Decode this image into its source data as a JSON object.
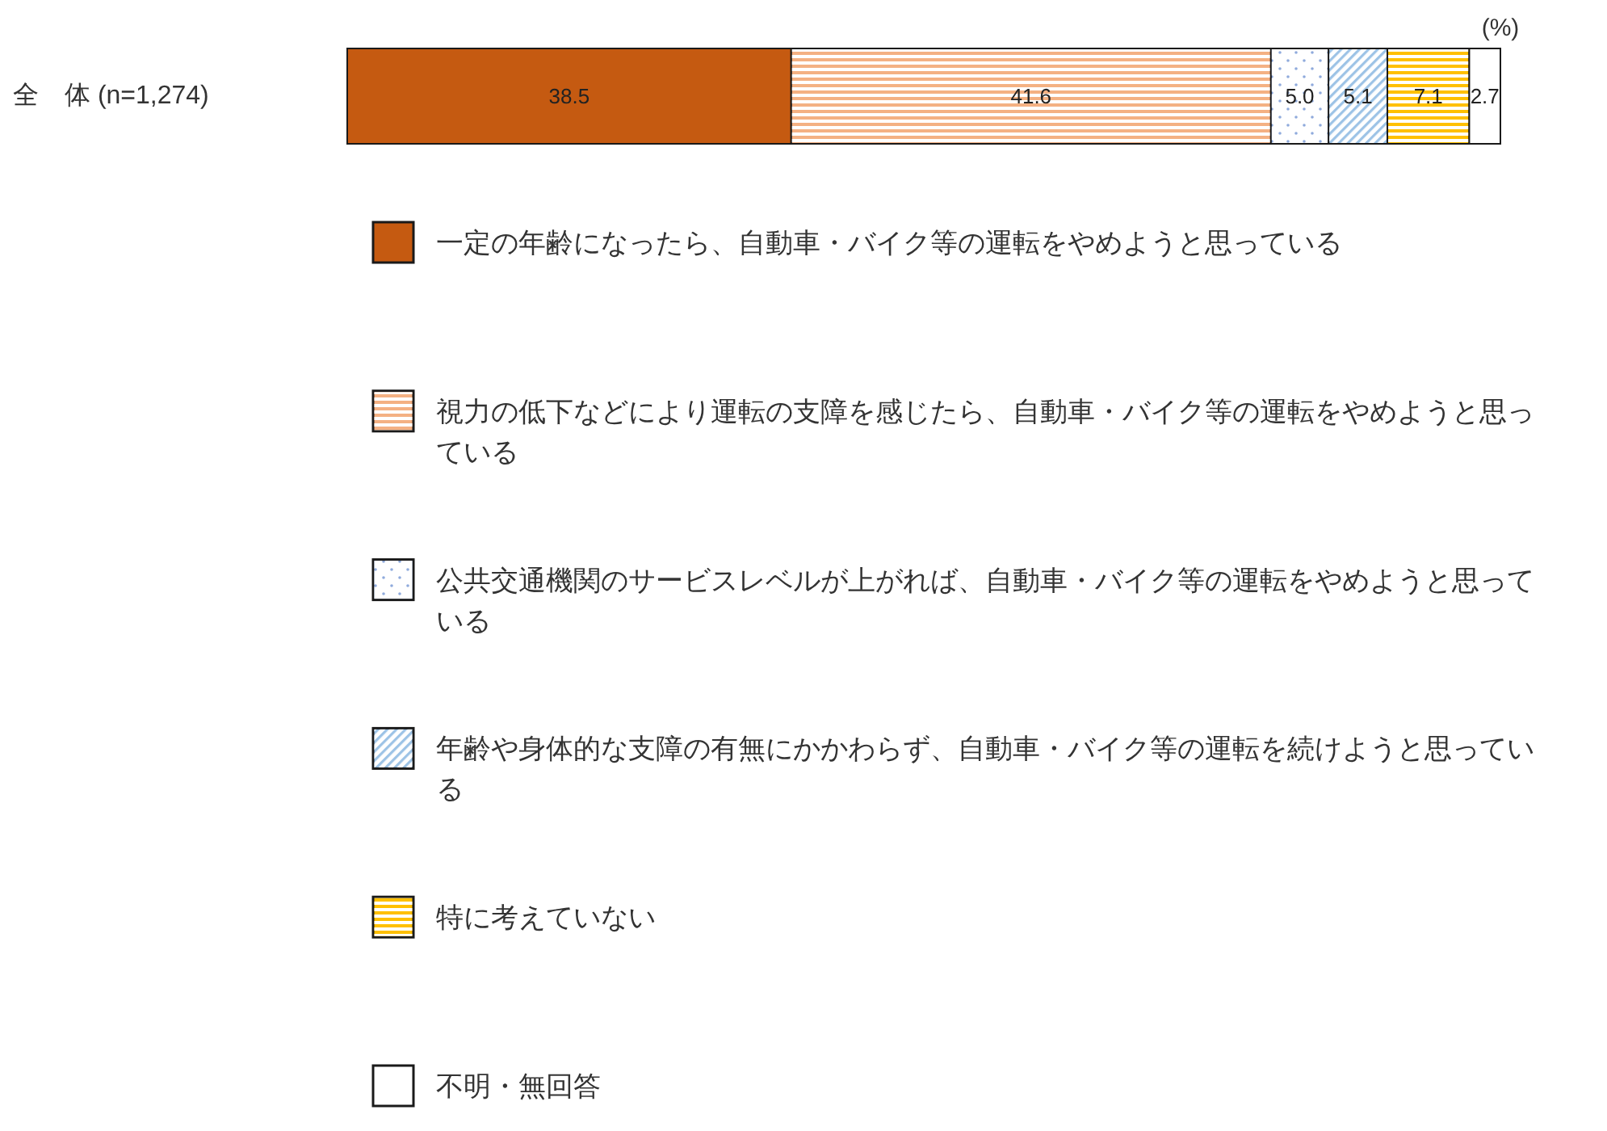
{
  "chart_data": {
    "type": "bar",
    "orientation": "horizontal",
    "stacked": true,
    "categories": [
      "全　体 (n=1,274)"
    ],
    "xlim": [
      0,
      100
    ],
    "tick_labels": "y",
    "legend": "bottom",
    "annotations": [
      "(%)"
    ],
    "series": [
      {
        "name": "一定の年齢になったら、自動車・バイク等の運転をやめようと思っている",
        "color": "#c55a11",
        "values": [
          38.5
        ],
        "value_labels": [
          "38.5"
        ]
      },
      {
        "name": "視力の低下などにより運転の支障を感じたら、自動車・バイク等の運転をやめようと思っている",
        "color": "#f4b183",
        "values": [
          41.6
        ],
        "value_labels": [
          "41.6"
        ]
      },
      {
        "name": "公共交通機関のサービスレベルが上がれば、自動車・バイク等の運転をやめようと思っている",
        "color": "#8faadc",
        "values": [
          5.0
        ],
        "value_labels": [
          "5.0"
        ]
      },
      {
        "name": "年齢や身体的な支障の有無にかかわらず、自動車・バイク等の運転を続けようと思っている",
        "color": "#9dc3e6",
        "values": [
          5.1
        ],
        "value_labels": [
          "5.1"
        ]
      },
      {
        "name": "特に考えていない",
        "color": "#ffc000",
        "values": [
          7.1
        ],
        "value_labels": [
          "7.1"
        ]
      },
      {
        "name": "不明・無回答",
        "color": "#ffffff",
        "values": [
          2.7
        ],
        "value_labels": [
          "2.7"
        ]
      }
    ]
  }
}
